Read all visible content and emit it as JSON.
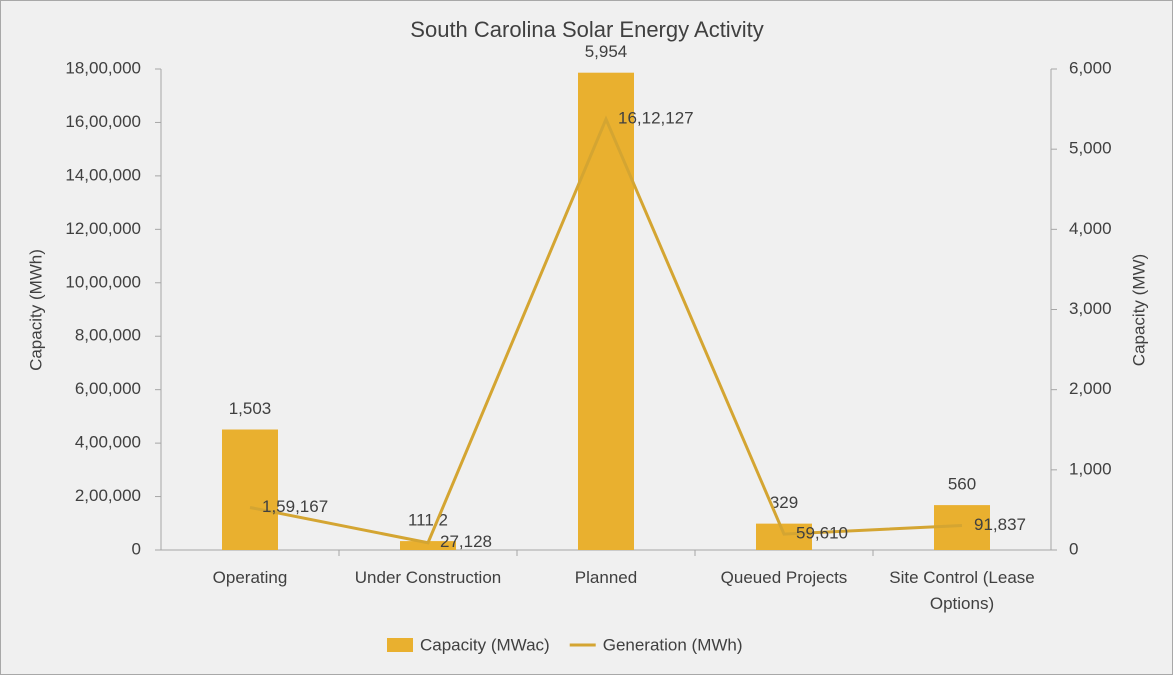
{
  "chart_data": {
    "type": "bar",
    "title": "South Carolina Solar Energy Activity",
    "y_label": "Capacity (MWh)",
    "y2_label": "Capacity (MW)",
    "categories": [
      "Operating",
      "Under Construction",
      "Planned",
      "Queued Projects",
      "Site Control (Lease Options)"
    ],
    "series": [
      {
        "name": "Capacity (MWac)",
        "type": "bar",
        "axis": "y2",
        "color": "#E9B02F",
        "values": [
          1503,
          111.2,
          5954,
          329,
          560
        ],
        "value_labels": [
          "1,503",
          "111.2",
          "5,954",
          "329",
          "560"
        ]
      },
      {
        "name": "Generation (MWh)",
        "type": "line",
        "axis": "y",
        "color": "#D4A532",
        "values": [
          159167,
          27128,
          1612127,
          59610,
          91837
        ],
        "value_labels": [
          "1,59,167",
          "27,128",
          "16,12,127",
          "59,610",
          "91,837"
        ]
      }
    ],
    "ylim": [
      0,
      1800000
    ],
    "yticks": [
      0,
      {
        "value": 200000,
        "label": "2,00,000"
      },
      {
        "value": 400000,
        "label": "4,00,000"
      },
      {
        "value": 600000,
        "label": "6,00,000"
      },
      {
        "value": 800000,
        "label": "8,00,000"
      },
      {
        "value": 1000000,
        "label": "10,00,000"
      },
      {
        "value": 1200000,
        "label": "12,00,000"
      },
      {
        "value": 1400000,
        "label": "14,00,000"
      },
      {
        "value": 1600000,
        "label": "16,00,000"
      },
      {
        "value": 1800000,
        "label": "18,00,000"
      }
    ],
    "y2lim": [
      0,
      6000
    ],
    "y2ticks": [
      0,
      {
        "value": 1000,
        "label": "1,000"
      },
      {
        "value": 2000,
        "label": "2,000"
      },
      {
        "value": 3000,
        "label": "3,000"
      },
      {
        "value": 4000,
        "label": "4,000"
      },
      {
        "value": 5000,
        "label": "5,000"
      },
      {
        "value": 6000,
        "label": "6,000"
      }
    ],
    "legend": "bottom"
  }
}
